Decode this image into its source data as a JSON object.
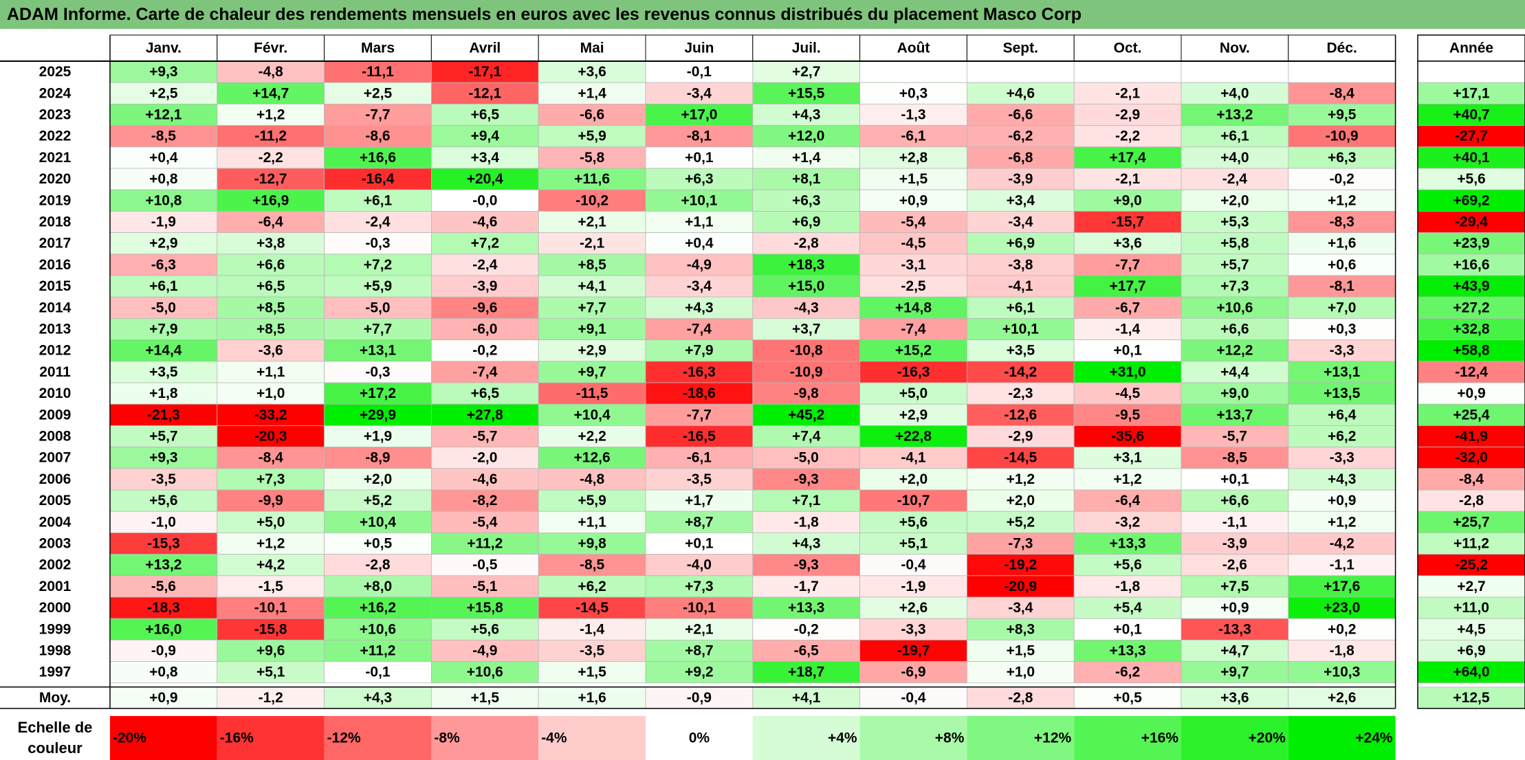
{
  "title": "ADAM Informe. Carte de chaleur des rendements mensuels en euros avec les revenus connus distribués du placement Masco Corp",
  "chart_data": {
    "type": "heatmap",
    "months": [
      "Janv.",
      "Févr.",
      "Mars",
      "Avril",
      "Mai",
      "Juin",
      "Juil.",
      "Août",
      "Sept.",
      "Oct.",
      "Nov.",
      "Déc."
    ],
    "year_header": "Année",
    "rows": [
      {
        "year": "2025",
        "values": [
          "+9,3",
          "-4,8",
          "-11,1",
          "-17,1",
          "+3,6",
          "-0,1",
          "+2,7",
          "",
          "",
          "",
          "",
          ""
        ],
        "annual": ""
      },
      {
        "year": "2024",
        "values": [
          "+2,5",
          "+14,7",
          "+2,5",
          "-12,1",
          "+1,4",
          "-3,4",
          "+15,5",
          "+0,3",
          "+4,6",
          "-2,1",
          "+4,0",
          "-8,4"
        ],
        "annual": "+17,1"
      },
      {
        "year": "2023",
        "values": [
          "+12,1",
          "+1,2",
          "-7,7",
          "+6,5",
          "-6,6",
          "+17,0",
          "+4,3",
          "-1,3",
          "-6,6",
          "-2,9",
          "+13,2",
          "+9,5"
        ],
        "annual": "+40,7"
      },
      {
        "year": "2022",
        "values": [
          "-8,5",
          "-11,2",
          "-8,6",
          "+9,4",
          "+5,9",
          "-8,1",
          "+12,0",
          "-6,1",
          "-6,2",
          "-2,2",
          "+6,1",
          "-10,9"
        ],
        "annual": "-27,7"
      },
      {
        "year": "2021",
        "values": [
          "+0,4",
          "-2,2",
          "+16,6",
          "+3,4",
          "-5,8",
          "+0,1",
          "+1,4",
          "+2,8",
          "-6,8",
          "+17,4",
          "+4,0",
          "+6,3"
        ],
        "annual": "+40,1"
      },
      {
        "year": "2020",
        "values": [
          "+0,8",
          "-12,7",
          "-16,4",
          "+20,4",
          "+11,6",
          "+6,3",
          "+8,1",
          "+1,5",
          "-3,9",
          "-2,1",
          "-2,4",
          "-0,2"
        ],
        "annual": "+5,6"
      },
      {
        "year": "2019",
        "values": [
          "+10,8",
          "+16,9",
          "+6,1",
          "-0,0",
          "-10,2",
          "+10,1",
          "+6,3",
          "+0,9",
          "+3,4",
          "+9,0",
          "+2,0",
          "+1,2"
        ],
        "annual": "+69,2"
      },
      {
        "year": "2018",
        "values": [
          "-1,9",
          "-6,4",
          "-2,4",
          "-4,6",
          "+2,1",
          "+1,1",
          "+6,9",
          "-5,4",
          "-3,4",
          "-15,7",
          "+5,3",
          "-8,3"
        ],
        "annual": "-29,4"
      },
      {
        "year": "2017",
        "values": [
          "+2,9",
          "+3,8",
          "-0,3",
          "+7,2",
          "-2,1",
          "+0,4",
          "-2,8",
          "-4,5",
          "+6,9",
          "+3,6",
          "+5,8",
          "+1,6"
        ],
        "annual": "+23,9"
      },
      {
        "year": "2016",
        "values": [
          "-6,3",
          "+6,6",
          "+7,2",
          "-2,4",
          "+8,5",
          "-4,9",
          "+18,3",
          "-3,1",
          "-3,8",
          "-7,7",
          "+5,7",
          "+0,6"
        ],
        "annual": "+16,6"
      },
      {
        "year": "2015",
        "values": [
          "+6,1",
          "+6,5",
          "+5,9",
          "-3,9",
          "+4,1",
          "-3,4",
          "+15,0",
          "-2,5",
          "-4,1",
          "+17,7",
          "+7,3",
          "-8,1"
        ],
        "annual": "+43,9"
      },
      {
        "year": "2014",
        "values": [
          "-5,0",
          "+8,5",
          "-5,0",
          "-9,6",
          "+7,7",
          "+4,3",
          "-4,3",
          "+14,8",
          "+6,1",
          "-6,7",
          "+10,6",
          "+7,0"
        ],
        "annual": "+27,2"
      },
      {
        "year": "2013",
        "values": [
          "+7,9",
          "+8,5",
          "+7,7",
          "-6,0",
          "+9,1",
          "-7,4",
          "+3,7",
          "-7,4",
          "+10,1",
          "-1,4",
          "+6,6",
          "+0,3"
        ],
        "annual": "+32,8"
      },
      {
        "year": "2012",
        "values": [
          "+14,4",
          "-3,6",
          "+13,1",
          "-0,2",
          "+2,9",
          "+7,9",
          "-10,8",
          "+15,2",
          "+3,5",
          "+0,1",
          "+12,2",
          "-3,3"
        ],
        "annual": "+58,8"
      },
      {
        "year": "2011",
        "values": [
          "+3,5",
          "+1,1",
          "-0,3",
          "-7,4",
          "+9,7",
          "-16,3",
          "-10,9",
          "-16,3",
          "-14,2",
          "+31,0",
          "+4,4",
          "+13,1"
        ],
        "annual": "-12,4"
      },
      {
        "year": "2010",
        "values": [
          "+1,8",
          "+1,0",
          "+17,2",
          "+6,5",
          "-11,5",
          "-18,6",
          "-9,8",
          "+5,0",
          "-2,3",
          "-4,5",
          "+9,0",
          "+13,5"
        ],
        "annual": "+0,9"
      },
      {
        "year": "2009",
        "values": [
          "-21,3",
          "-33,2",
          "+29,9",
          "+27,8",
          "+10,4",
          "-7,7",
          "+45,2",
          "+2,9",
          "-12,6",
          "-9,5",
          "+13,7",
          "+6,4"
        ],
        "annual": "+25,4"
      },
      {
        "year": "2008",
        "values": [
          "+5,7",
          "-20,3",
          "+1,9",
          "-5,7",
          "+2,2",
          "-16,5",
          "+7,4",
          "+22,8",
          "-2,9",
          "-35,6",
          "-5,7",
          "+6,2"
        ],
        "annual": "-41,9"
      },
      {
        "year": "2007",
        "values": [
          "+9,3",
          "-8,4",
          "-8,9",
          "-2,0",
          "+12,6",
          "-6,1",
          "-5,0",
          "-4,1",
          "-14,5",
          "+3,1",
          "-8,5",
          "-3,3"
        ],
        "annual": "-32,0"
      },
      {
        "year": "2006",
        "values": [
          "-3,5",
          "+7,3",
          "+2,0",
          "-4,6",
          "-4,8",
          "-3,5",
          "-9,3",
          "+2,0",
          "+1,2",
          "+1,2",
          "+0,1",
          "+4,3"
        ],
        "annual": "-8,4"
      },
      {
        "year": "2005",
        "values": [
          "+5,6",
          "-9,9",
          "+5,2",
          "-8,2",
          "+5,9",
          "+1,7",
          "+7,1",
          "-10,7",
          "+2,0",
          "-6,4",
          "+6,6",
          "+0,9"
        ],
        "annual": "-2,8"
      },
      {
        "year": "2004",
        "values": [
          "-1,0",
          "+5,0",
          "+10,4",
          "-5,4",
          "+1,1",
          "+8,7",
          "-1,8",
          "+5,6",
          "+5,2",
          "-3,2",
          "-1,1",
          "+1,2"
        ],
        "annual": "+25,7"
      },
      {
        "year": "2003",
        "values": [
          "-15,3",
          "+1,2",
          "+0,5",
          "+11,2",
          "+9,8",
          "+0,1",
          "+4,3",
          "+5,1",
          "-7,3",
          "+13,3",
          "-3,9",
          "-4,2"
        ],
        "annual": "+11,2"
      },
      {
        "year": "2002",
        "values": [
          "+13,2",
          "+4,2",
          "-2,8",
          "-0,5",
          "-8,5",
          "-4,0",
          "-9,3",
          "-0,4",
          "-19,2",
          "+5,6",
          "-2,6",
          "-1,1"
        ],
        "annual": "-25,2"
      },
      {
        "year": "2001",
        "values": [
          "-5,6",
          "-1,5",
          "+8,0",
          "-5,1",
          "+6,2",
          "+7,3",
          "-1,7",
          "-1,9",
          "-20,9",
          "-1,8",
          "+7,5",
          "+17,6"
        ],
        "annual": "+2,7"
      },
      {
        "year": "2000",
        "values": [
          "-18,3",
          "-10,1",
          "+16,2",
          "+15,8",
          "-14,5",
          "-10,1",
          "+13,3",
          "+2,6",
          "-3,4",
          "+5,4",
          "+0,9",
          "+23,0"
        ],
        "annual": "+11,0"
      },
      {
        "year": "1999",
        "values": [
          "+16,0",
          "-15,8",
          "+10,6",
          "+5,6",
          "-1,4",
          "+2,1",
          "-0,2",
          "-3,3",
          "+8,3",
          "+0,1",
          "-13,3",
          "+0,2"
        ],
        "annual": "+4,5"
      },
      {
        "year": "1998",
        "values": [
          "-0,9",
          "+9,6",
          "+11,2",
          "-4,9",
          "-3,5",
          "+8,7",
          "-6,5",
          "-19,7",
          "+1,5",
          "+13,3",
          "+4,7",
          "-1,8"
        ],
        "annual": "+6,9"
      },
      {
        "year": "1997",
        "values": [
          "+0,8",
          "+5,1",
          "-0,1",
          "+10,6",
          "+1,5",
          "+9,2",
          "+18,7",
          "-6,9",
          "+1,0",
          "-6,2",
          "+9,7",
          "+10,3"
        ],
        "annual": "+64,0"
      }
    ],
    "average": {
      "label": "Moy.",
      "values": [
        "+0,9",
        "-1,2",
        "+4,3",
        "+1,5",
        "+1,6",
        "-0,9",
        "+4,1",
        "-0,4",
        "-2,8",
        "+0,5",
        "+3,6",
        "+2,6"
      ],
      "annual": "+12,5"
    },
    "color_scale": {
      "label_line1": "Echelle de",
      "label_line2": "couleur",
      "steps": [
        "-20%",
        "-16%",
        "-12%",
        "-8%",
        "-4%",
        "0%",
        "+4%",
        "+8%",
        "+12%",
        "+16%",
        "+20%",
        "+24%"
      ],
      "negative_color": "#ff0000",
      "neutral_color": "#ffffff",
      "positive_color": "#00ee00"
    }
  }
}
